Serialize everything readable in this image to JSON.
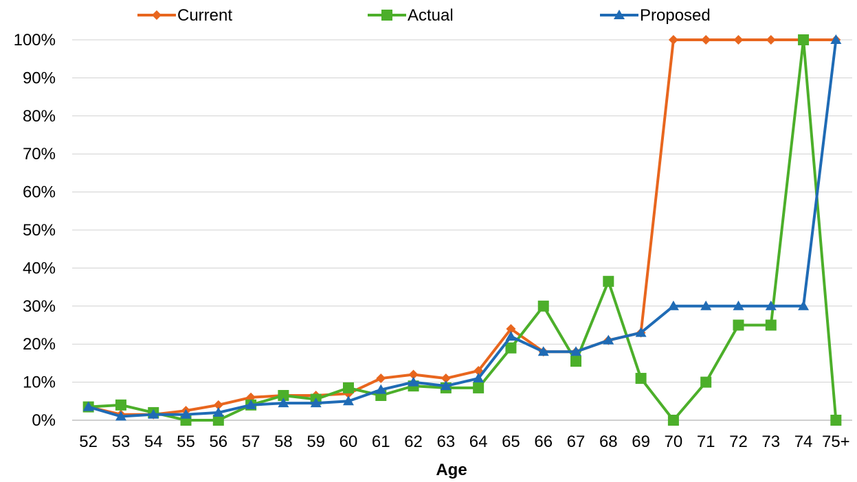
{
  "chart_data": {
    "type": "line",
    "title": "",
    "xlabel": "Age",
    "ylabel": "",
    "categories": [
      "52",
      "53",
      "54",
      "55",
      "56",
      "57",
      "58",
      "59",
      "60",
      "61",
      "62",
      "63",
      "64",
      "65",
      "66",
      "67",
      "68",
      "69",
      "70",
      "71",
      "72",
      "73",
      "74",
      "75+"
    ],
    "y_ticks": [
      "0%",
      "10%",
      "20%",
      "30%",
      "40%",
      "50%",
      "60%",
      "70%",
      "80%",
      "90%",
      "100%"
    ],
    "ylim": [
      0,
      100
    ],
    "y_unit": "percent",
    "grid": "horizontal",
    "legend_position": "top",
    "series": [
      {
        "name": "Current",
        "color": "#E8661E",
        "marker": "diamond",
        "values": [
          3.5,
          1.5,
          1.5,
          2.5,
          4,
          6,
          6.5,
          6.5,
          7,
          11,
          12,
          11,
          13,
          24,
          18,
          18,
          21,
          23,
          100,
          100,
          100,
          100,
          100,
          100
        ]
      },
      {
        "name": "Actual",
        "color": "#4CAF2A",
        "marker": "square",
        "values": [
          3.5,
          4,
          2,
          0,
          0,
          4,
          6.5,
          5.5,
          8.5,
          6.5,
          9,
          8.5,
          8.5,
          19,
          30,
          15.5,
          36.5,
          11,
          0,
          10,
          25,
          25,
          100,
          0
        ]
      },
      {
        "name": "Proposed",
        "color": "#1F6BB5",
        "marker": "triangle",
        "values": [
          3.5,
          1,
          1.5,
          1.5,
          2,
          4,
          4.5,
          4.5,
          5,
          8,
          10,
          9,
          11,
          22,
          18,
          18,
          21,
          23,
          30,
          30,
          30,
          30,
          30,
          100
        ]
      }
    ]
  }
}
